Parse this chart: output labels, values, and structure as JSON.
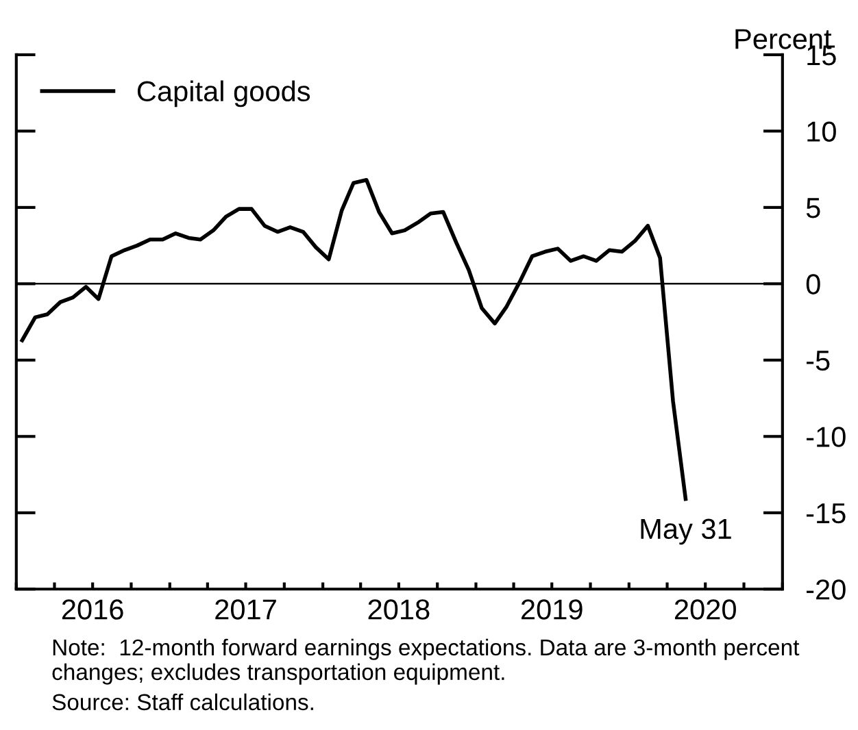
{
  "chart_data": {
    "type": "line",
    "ylabel": "Percent",
    "x": [
      "2016-01-15",
      "2016-02-15",
      "2016-03-15",
      "2016-04-15",
      "2016-05-15",
      "2016-06-15",
      "2016-07-15",
      "2016-08-15",
      "2016-09-15",
      "2016-10-15",
      "2016-11-15",
      "2016-12-15",
      "2017-01-15",
      "2017-02-15",
      "2017-03-15",
      "2017-04-15",
      "2017-05-15",
      "2017-06-15",
      "2017-07-15",
      "2017-08-15",
      "2017-09-15",
      "2017-10-15",
      "2017-11-15",
      "2017-12-15",
      "2018-01-15",
      "2018-02-15",
      "2018-03-15",
      "2018-04-15",
      "2018-05-15",
      "2018-06-15",
      "2018-07-15",
      "2018-08-15",
      "2018-09-15",
      "2018-10-15",
      "2018-11-15",
      "2018-12-15",
      "2019-01-15",
      "2019-02-15",
      "2019-03-15",
      "2019-04-15",
      "2019-05-15",
      "2019-06-15",
      "2019-07-15",
      "2019-08-15",
      "2019-09-15",
      "2019-10-15",
      "2019-11-15",
      "2019-12-15",
      "2020-01-15",
      "2020-02-15",
      "2020-03-15",
      "2020-04-15",
      "2020-05-15"
    ],
    "series": [
      {
        "name": "Capital goods",
        "color": "#000000",
        "values": [
          -3.7,
          -2.2,
          -2.0,
          -1.2,
          -0.9,
          -0.2,
          -1.0,
          1.8,
          2.2,
          2.5,
          2.9,
          2.9,
          3.3,
          3.0,
          2.9,
          3.5,
          4.4,
          4.9,
          4.9,
          3.8,
          3.4,
          3.7,
          3.4,
          2.4,
          1.6,
          4.8,
          6.6,
          6.8,
          4.7,
          3.3,
          3.5,
          4.0,
          4.6,
          4.7,
          2.7,
          0.9,
          -1.6,
          -2.6,
          -1.5,
          0.1,
          1.8,
          2.1,
          2.3,
          1.5,
          1.8,
          1.5,
          2.2,
          2.1,
          2.8,
          3.8,
          1.7,
          -7.7,
          -14.1
        ]
      }
    ],
    "xlim": [
      "2016-01-01",
      "2021-01-01"
    ],
    "xticks": [
      {
        "value": "2016-01-01",
        "label": null
      },
      {
        "value": "2016-04-01",
        "label": null
      },
      {
        "value": "2016-07-01",
        "label": "2016"
      },
      {
        "value": "2016-10-01",
        "label": null
      },
      {
        "value": "2017-01-01",
        "label": null
      },
      {
        "value": "2017-04-01",
        "label": null
      },
      {
        "value": "2017-07-01",
        "label": "2017"
      },
      {
        "value": "2017-10-01",
        "label": null
      },
      {
        "value": "2018-01-01",
        "label": null
      },
      {
        "value": "2018-04-01",
        "label": null
      },
      {
        "value": "2018-07-01",
        "label": "2018"
      },
      {
        "value": "2018-10-01",
        "label": null
      },
      {
        "value": "2019-01-01",
        "label": null
      },
      {
        "value": "2019-04-01",
        "label": null
      },
      {
        "value": "2019-07-01",
        "label": "2019"
      },
      {
        "value": "2019-10-01",
        "label": null
      },
      {
        "value": "2020-01-01",
        "label": null
      },
      {
        "value": "2020-04-01",
        "label": null
      },
      {
        "value": "2020-07-01",
        "label": "2020"
      },
      {
        "value": "2020-10-01",
        "label": null
      },
      {
        "value": "2021-01-01",
        "label": null
      }
    ],
    "ylim": [
      -20,
      15
    ],
    "yticks": [
      -20,
      -15,
      -10,
      -5,
      0,
      5,
      10,
      15
    ],
    "ref_lines": [
      {
        "axis": "y",
        "value": 0,
        "color": "#000000"
      }
    ],
    "annotations": [
      {
        "text": "May 31",
        "x": "2020-05-15",
        "y": -14.1
      },
      "Note:  12-month forward earnings expectations. Data are 3-month percent changes; excludes transportation equipment.",
      "Source: Staff calculations."
    ],
    "legend": "top left",
    "grid": false,
    "marker": "none",
    "line_style": "solid"
  }
}
